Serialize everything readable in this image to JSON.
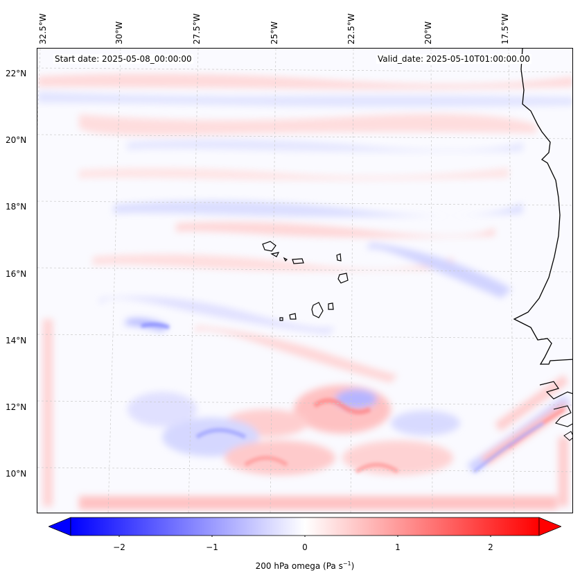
{
  "header": {
    "start_date": "Start date: 2025-05-08_00:00:00",
    "valid_date": "Valid_date: 2025-05-10T01:00:00.00"
  },
  "axes": {
    "lon_labels": [
      "32.5°W",
      "30°W",
      "27.5°W",
      "25°W",
      "22.5°W",
      "20°W",
      "17.5°W"
    ],
    "lat_labels": [
      "22°N",
      "20°N",
      "18°N",
      "16°N",
      "14°N",
      "12°N",
      "10°N"
    ]
  },
  "colorbar": {
    "label_prefix": "200 hPa omega (Pa s",
    "label_exp": "−1",
    "label_suffix": ")",
    "ticks": [
      "−2",
      "−1",
      "0",
      "1",
      "2"
    ],
    "range": [
      -2.7,
      2.7
    ],
    "colormap": "bwr",
    "extend": "both"
  },
  "colors": {
    "negative": "#0000ff",
    "neutral": "#ffffff",
    "positive": "#ff0000",
    "coastline": "#000000",
    "gridline": "#bbbbbb"
  },
  "map": {
    "projection": "lambert-conformal",
    "region": "Cape Verde / West African coast",
    "gridlines": true,
    "features": [
      "coastline",
      "Cape Verde islands"
    ]
  }
}
